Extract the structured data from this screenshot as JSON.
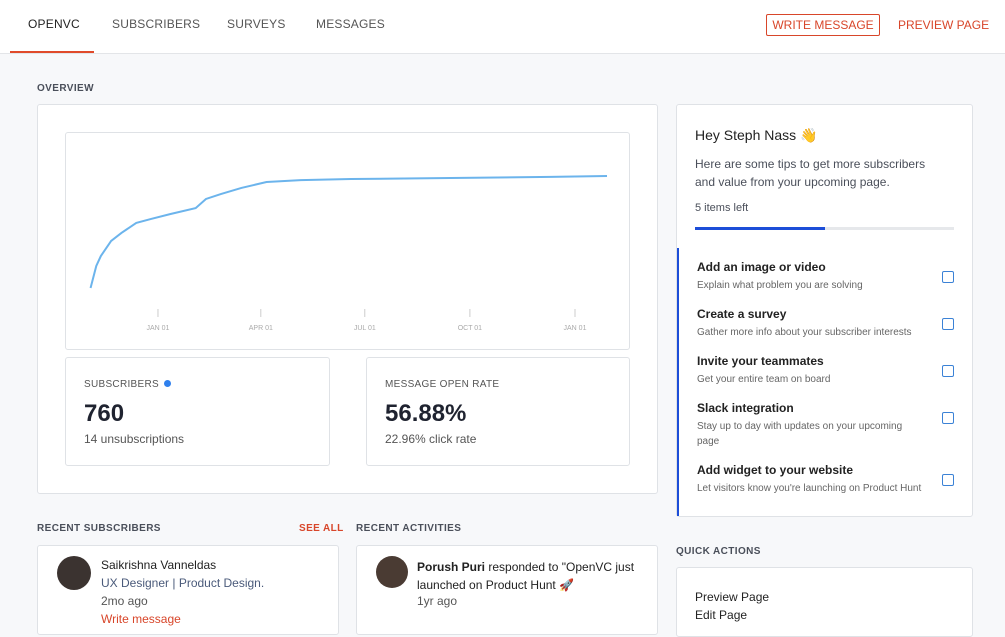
{
  "nav": {
    "tabs": [
      "OPENVC",
      "SUBSCRIBERS",
      "SURVEYS",
      "MESSAGES"
    ],
    "write_message": "WRITE MESSAGE",
    "preview_page": "PREVIEW PAGE"
  },
  "overview": {
    "label": "OVERVIEW",
    "chart": {
      "type": "line",
      "color": "#6cb4ec",
      "x": [
        -59,
        -54,
        -50,
        -41,
        -32,
        -19,
        -6,
        11,
        33,
        42,
        55,
        73,
        95,
        125,
        169,
        256,
        344,
        393
      ],
      "values": [
        74,
        200,
        257,
        343,
        389,
        446,
        469,
        497,
        531,
        583,
        611,
        646,
        680,
        691,
        697,
        703,
        709,
        714
      ],
      "xlim": [
        -65,
        400
      ],
      "ylim": [
        0,
        800
      ],
      "xticks": [
        {
          "value": 0,
          "label": "JAN 01"
        },
        {
          "value": 90,
          "label": "APR 01"
        },
        {
          "value": 181,
          "label": "JUL 01"
        },
        {
          "value": 273,
          "label": "OCT 01"
        },
        {
          "value": 365,
          "label": "JAN 01"
        }
      ]
    },
    "stats": [
      {
        "label": "SUBSCRIBERS",
        "value": "760",
        "note": "14 unsubscriptions"
      },
      {
        "label": "MESSAGE OPEN RATE",
        "value": "56.88%",
        "note": "22.96% click rate"
      }
    ]
  },
  "tips": {
    "greeting": "Hey Steph Nass 👋",
    "text": "Here are some tips to get more subscribers and value from your upcoming page.",
    "items_left": "5 items left",
    "progress": 50,
    "items": [
      {
        "title": "Add an image or video",
        "desc": "Explain what problem you are solving"
      },
      {
        "title": "Create a survey",
        "desc": "Gather more info about your subscriber interests"
      },
      {
        "title": "Invite your teammates",
        "desc": "Get your entire team on board"
      },
      {
        "title": "Slack integration",
        "desc": "Stay up to day with updates on your upcoming page"
      },
      {
        "title": "Add widget to your website",
        "desc": "Let visitors know you're launching on Product Hunt"
      }
    ]
  },
  "recent_subscribers": {
    "label": "RECENT SUBSCRIBERS",
    "see_all": "SEE ALL",
    "items": [
      {
        "name": "Saikrishna Vanneldas",
        "role": "UX Designer | Product Design.",
        "time": "2mo ago",
        "action": "Write message"
      }
    ]
  },
  "recent_activities": {
    "label": "RECENT ACTIVITIES",
    "items": [
      {
        "name": "Porush Puri",
        "text": "responded to \"OpenVC just launched on Product Hunt 🚀",
        "time": "1yr ago"
      }
    ]
  },
  "quick_actions": {
    "label": "QUICK ACTIONS",
    "items": [
      "Preview Page",
      "Edit Page"
    ]
  }
}
